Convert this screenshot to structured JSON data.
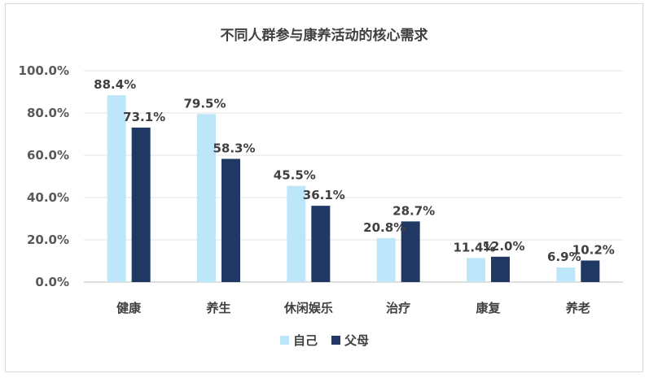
{
  "chart_data": {
    "type": "bar",
    "title": "不同人群参与康养活动的核心需求",
    "categories": [
      "健康",
      "养生",
      "休闲娱乐",
      "治疗",
      "康复",
      "养老"
    ],
    "series": [
      {
        "name": "自己",
        "color": "#bde6fa",
        "values": [
          88.4,
          79.5,
          45.5,
          20.8,
          11.4,
          6.9
        ],
        "labels": [
          "88.4%",
          "79.5%",
          "45.5%",
          "20.8%",
          "11.4%",
          "6.9%"
        ]
      },
      {
        "name": "父母",
        "color": "#1f3864",
        "values": [
          73.1,
          58.3,
          36.1,
          28.7,
          12.0,
          10.2
        ],
        "labels": [
          "73.1%",
          "58.3%",
          "36.1%",
          "28.7%",
          "12.0%",
          "10.2%"
        ]
      }
    ],
    "yticks": [
      "0.0%",
      "20.0%",
      "40.0%",
      "60.0%",
      "80.0%",
      "100.0%"
    ],
    "ylim": [
      0,
      100
    ],
    "grid": true,
    "legend": "bottom-center"
  }
}
